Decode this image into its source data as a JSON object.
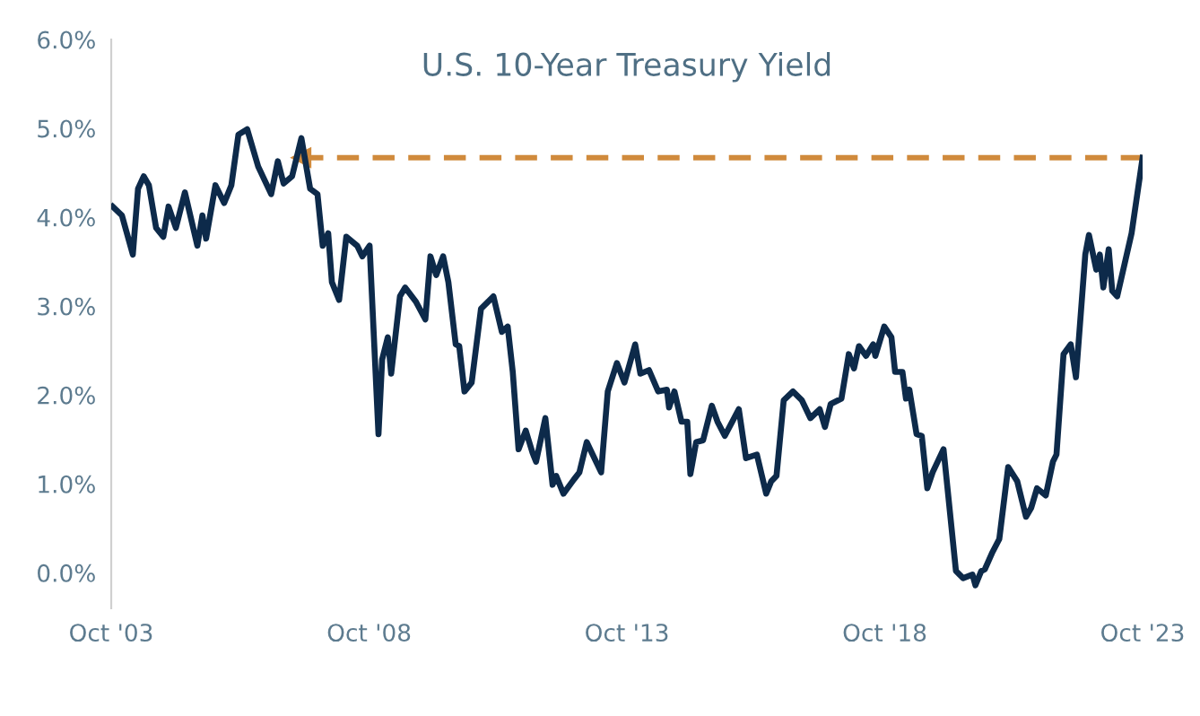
{
  "chart_data": {
    "type": "line",
    "title": "U.S. 10-Year Treasury Yield",
    "series": [
      {
        "color": "#0d2a4a",
        "x": [
          "2003-10-11",
          "2003-12-16",
          "2004-03-02",
          "2004-04-08",
          "2004-05-18",
          "2004-06-24",
          "2004-08-14",
          "2004-10-04",
          "2004-11-10",
          "2005-01-01",
          "2005-03-06",
          "2005-06-02",
          "2005-07-08",
          "2005-08-03",
          "2005-10-08",
          "2005-12-09",
          "2006-01-29",
          "2006-03-20",
          "2006-05-21",
          "2006-08-07",
          "2006-11-07",
          "2006-12-24",
          "2007-02-03",
          "2007-04-04",
          "2007-06-09",
          "2007-08-10",
          "2007-10-01",
          "2007-11-07",
          "2007-12-16",
          "2008-01-11",
          "2008-03-02",
          "2008-04-22",
          "2008-07-08",
          "2008-08-14",
          "2008-10-04",
          "2008-12-06",
          "2009-01-01",
          "2009-02-10",
          "2009-03-06",
          "2009-05-07",
          "2009-06-13",
          "2009-08-28",
          "2009-11-03",
          "2009-12-09",
          "2010-01-19",
          "2010-03-09",
          "2010-04-15",
          "2010-06-06",
          "2010-07-01",
          "2010-08-07",
          "2010-09-27",
          "2010-12-02",
          "2011-02-28",
          "2011-04-29",
          "2011-06-09",
          "2011-07-15",
          "2011-08-25",
          "2011-10-15",
          "2011-12-02",
          "2011-12-27",
          "2012-03-02",
          "2012-04-22",
          "2012-05-18",
          "2012-07-08",
          "2012-09-20",
          "2012-10-29",
          "2012-12-20",
          "2013-04-01",
          "2013-05-18",
          "2013-07-22",
          "2013-09-13",
          "2013-11-28",
          "2014-01-04",
          "2014-03-06",
          "2014-05-10",
          "2014-07-11",
          "2014-07-26",
          "2014-09-02",
          "2014-10-22",
          "2014-12-02",
          "2014-12-24",
          "2015-02-03",
          "2015-03-24",
          "2015-05-25",
          "2015-07-04",
          "2015-08-25",
          "2015-12-02",
          "2016-01-22",
          "2016-04-08",
          "2016-06-13",
          "2016-07-19",
          "2016-08-25",
          "2016-10-15",
          "2016-12-20",
          "2017-02-21",
          "2017-04-22",
          "2017-06-27",
          "2017-08-03",
          "2017-09-13",
          "2017-11-28",
          "2018-01-19",
          "2018-02-25",
          "2018-04-01",
          "2018-05-21",
          "2018-07-11",
          "2018-07-26",
          "2018-09-27",
          "2018-11-17",
          "2018-12-13",
          "2019-02-03",
          "2019-02-28",
          "2019-03-24",
          "2019-05-14",
          "2019-06-20",
          "2019-07-29",
          "2019-09-05",
          "2019-11-21",
          "2020-02-17",
          "2020-04-08",
          "2020-06-13",
          "2020-07-04",
          "2020-08-14",
          "2020-09-09",
          "2020-10-29",
          "2020-12-20",
          "2021-02-21",
          "2021-04-26",
          "2021-06-27",
          "2021-08-03",
          "2021-09-13",
          "2021-11-14",
          "2022-01-04",
          "2022-01-29",
          "2022-03-20",
          "2022-05-10",
          "2022-06-16",
          "2022-08-21",
          "2022-09-16",
          "2022-11-07",
          "2022-12-02",
          "2022-12-27",
          "2023-02-03",
          "2023-02-28",
          "2023-04-04",
          "2023-07-15",
          "2023-10-01"
        ],
        "values": [
          4.12,
          4.02,
          3.58,
          4.32,
          4.46,
          4.36,
          3.88,
          3.78,
          4.12,
          3.88,
          4.28,
          3.68,
          4.02,
          3.76,
          4.36,
          4.16,
          4.36,
          4.93,
          4.99,
          4.57,
          4.26,
          4.63,
          4.38,
          4.46,
          4.89,
          4.32,
          4.26,
          3.68,
          3.82,
          3.27,
          3.07,
          3.78,
          3.68,
          3.56,
          3.68,
          1.56,
          2.4,
          2.65,
          2.24,
          3.11,
          3.21,
          3.05,
          2.85,
          3.56,
          3.35,
          3.56,
          3.27,
          2.57,
          2.55,
          2.04,
          2.14,
          2.97,
          3.11,
          2.71,
          2.77,
          2.26,
          1.39,
          1.6,
          1.35,
          1.25,
          1.74,
          0.99,
          1.09,
          0.89,
          1.05,
          1.13,
          1.47,
          1.13,
          2.04,
          2.36,
          2.14,
          2.57,
          2.24,
          2.28,
          2.04,
          2.06,
          1.86,
          2.04,
          1.7,
          1.7,
          1.11,
          1.47,
          1.49,
          1.88,
          1.7,
          1.54,
          1.84,
          1.29,
          1.33,
          0.89,
          1.03,
          1.09,
          1.94,
          2.04,
          1.94,
          1.74,
          1.84,
          1.64,
          1.9,
          1.96,
          2.46,
          2.3,
          2.55,
          2.44,
          2.57,
          2.44,
          2.77,
          2.65,
          2.26,
          2.26,
          1.96,
          2.06,
          1.56,
          1.54,
          0.95,
          1.13,
          1.39,
          0.02,
          -0.06,
          -0.02,
          -0.14,
          0.02,
          0.04,
          0.22,
          0.38,
          1.19,
          1.03,
          0.63,
          0.73,
          0.95,
          0.87,
          1.25,
          1.33,
          2.46,
          2.57,
          2.2,
          3.58,
          3.8,
          3.41,
          3.58,
          3.21,
          3.64,
          3.17,
          3.11,
          3.82,
          4.67
        ]
      }
    ],
    "xlim": [
      "2003-10-01",
      "2023-10-01"
    ],
    "xticks": [
      {
        "value": "2003-10-01",
        "label": "Oct '03"
      },
      {
        "value": "2008-10-01",
        "label": "Oct '08"
      },
      {
        "value": "2013-10-01",
        "label": "Oct '13"
      },
      {
        "value": "2018-10-01",
        "label": "Oct '18"
      },
      {
        "value": "2023-10-01",
        "label": "Oct '23"
      }
    ],
    "ylim": [
      -0.4,
      6.0
    ],
    "yticks": [
      {
        "value": 0,
        "label": "0.0%"
      },
      {
        "value": 1,
        "label": "1.0%"
      },
      {
        "value": 2,
        "label": "2.0%"
      },
      {
        "value": 3,
        "label": "3.0%"
      },
      {
        "value": 4,
        "label": "4.0%"
      },
      {
        "value": 5,
        "label": "5.0%"
      },
      {
        "value": 6,
        "label": "6.0%"
      }
    ],
    "ref_lines": [
      {
        "axis": "y",
        "value": 4.67,
        "color": "#d08a3c",
        "line_style": "dashed"
      }
    ],
    "grid": false,
    "legend": false,
    "marker": "none",
    "line_style": "solid"
  }
}
